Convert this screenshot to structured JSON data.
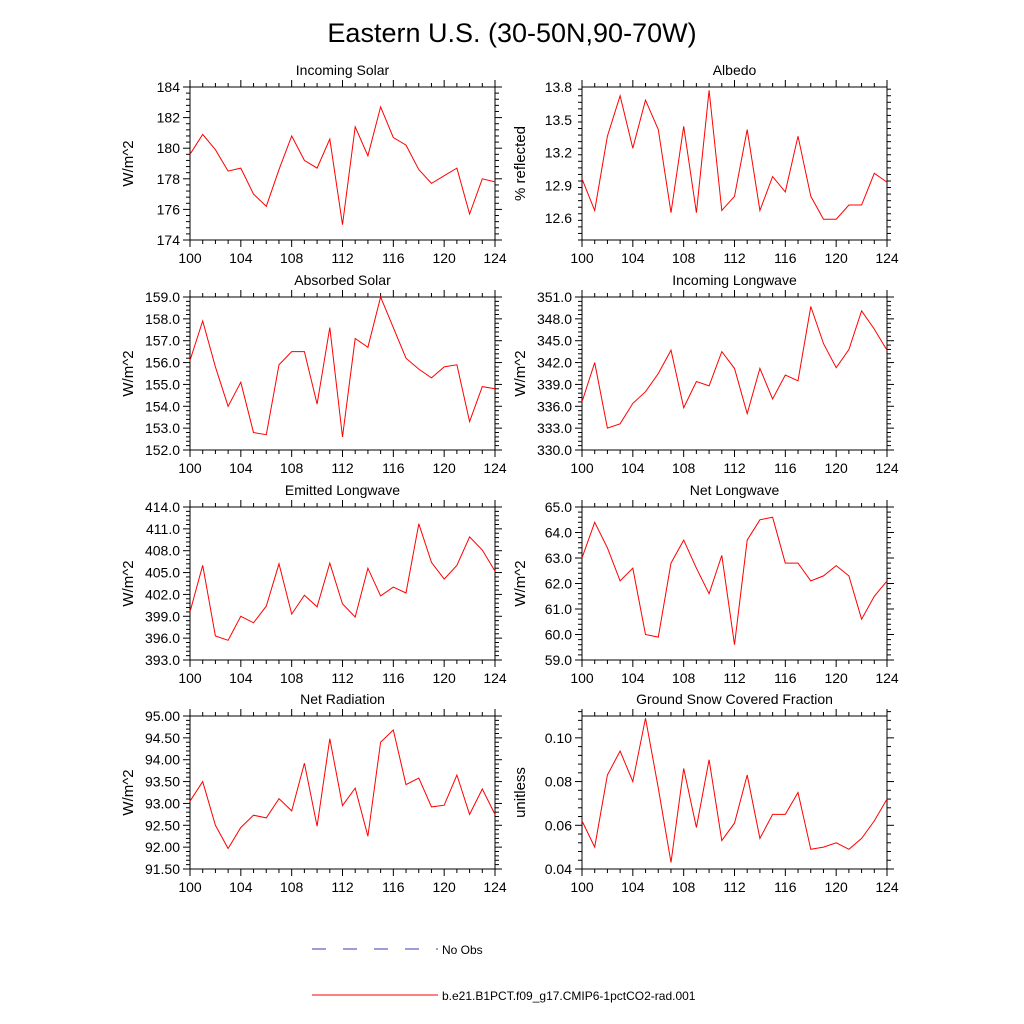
{
  "figure": {
    "title": "Eastern U.S. (30-50N,90-70W)",
    "legend": [
      {
        "label": "No Obs",
        "color": "#3b3bb0",
        "style": "dashed"
      },
      {
        "label": "b.e21.B1PCT.f09_g17.CMIP6-1pctCO2-rad.001",
        "color": "#ff0000",
        "style": "solid"
      }
    ]
  },
  "chart_data": [
    {
      "type": "line",
      "title": "Incoming Solar",
      "xlabel": "",
      "ylabel": "W/m^2",
      "xlim": [
        100,
        124
      ],
      "ylim": [
        174,
        184
      ],
      "xticks": [
        100,
        104,
        108,
        112,
        116,
        120,
        124
      ],
      "xtick_labels": [
        "100",
        "104",
        "108",
        "112",
        "116",
        "120",
        "124"
      ],
      "yticks": [
        174,
        176,
        178,
        180,
        182,
        184
      ],
      "ytick_labels": [
        "174",
        "176",
        "178",
        "180",
        "182",
        "184"
      ],
      "x": [
        100,
        101,
        102,
        103,
        104,
        105,
        106,
        107,
        108,
        109,
        110,
        111,
        112,
        113,
        114,
        115,
        116,
        117,
        118,
        119,
        120,
        121,
        122,
        123,
        124
      ],
      "series": [
        {
          "name": "b.e21.B1PCT.f09_g17.CMIP6-1pctCO2-rad.001",
          "color": "#ff0000",
          "values": [
            179.6,
            180.9,
            179.9,
            178.5,
            178.7,
            177.0,
            176.2,
            178.6,
            180.8,
            179.2,
            178.7,
            180.6,
            175.0,
            181.4,
            179.5,
            182.7,
            180.7,
            180.2,
            178.6,
            177.7,
            178.2,
            178.7,
            175.7,
            178.0,
            177.8
          ]
        }
      ]
    },
    {
      "type": "line",
      "title": "Albedo",
      "xlabel": "",
      "ylabel": "% reflected",
      "xlim": [
        100,
        124
      ],
      "ylim": [
        12.4,
        13.8
      ],
      "xticks": [
        100,
        104,
        108,
        112,
        116,
        120,
        124
      ],
      "xtick_labels": [
        "100",
        "104",
        "108",
        "112",
        "116",
        "120",
        "124"
      ],
      "yticks": [
        12.6,
        12.9,
        13.2,
        13.5,
        13.8
      ],
      "ytick_labels": [
        "12.6",
        "12.9",
        "13.2",
        "13.5",
        "13.8"
      ],
      "x": [
        100,
        101,
        102,
        103,
        104,
        105,
        106,
        107,
        108,
        109,
        110,
        111,
        112,
        113,
        114,
        115,
        116,
        117,
        118,
        119,
        120,
        121,
        122,
        123,
        124
      ],
      "series": [
        {
          "name": "b.e21.B1PCT.f09_g17.CMIP6-1pctCO2-rad.001",
          "color": "#ff0000",
          "values": [
            12.96,
            12.67,
            13.35,
            13.72,
            13.24,
            13.68,
            13.41,
            12.65,
            13.44,
            12.65,
            13.77,
            12.67,
            12.8,
            13.41,
            12.67,
            12.98,
            12.84,
            13.35,
            12.8,
            12.59,
            12.59,
            12.72,
            12.72,
            13.01,
            12.93
          ]
        }
      ]
    },
    {
      "type": "line",
      "title": "Absorbed Solar",
      "xlabel": "",
      "ylabel": "W/m^2",
      "xlim": [
        100,
        124
      ],
      "ylim": [
        152.0,
        159.0
      ],
      "xticks": [
        100,
        104,
        108,
        112,
        116,
        120,
        124
      ],
      "xtick_labels": [
        "100",
        "104",
        "108",
        "112",
        "116",
        "120",
        "124"
      ],
      "yticks": [
        152.0,
        153.0,
        154.0,
        155.0,
        156.0,
        157.0,
        158.0,
        159.0
      ],
      "ytick_labels": [
        "152.0",
        "153.0",
        "154.0",
        "155.0",
        "156.0",
        "157.0",
        "158.0",
        "159.0"
      ],
      "x": [
        100,
        101,
        102,
        103,
        104,
        105,
        106,
        107,
        108,
        109,
        110,
        111,
        112,
        113,
        114,
        115,
        116,
        117,
        118,
        119,
        120,
        121,
        122,
        123,
        124
      ],
      "series": [
        {
          "name": "b.e21.B1PCT.f09_g17.CMIP6-1pctCO2-rad.001",
          "color": "#ff0000",
          "values": [
            156.1,
            157.9,
            155.8,
            154.0,
            155.1,
            152.8,
            152.7,
            155.9,
            156.5,
            156.5,
            154.1,
            157.6,
            152.6,
            157.1,
            156.7,
            159.0,
            157.6,
            156.2,
            155.7,
            155.3,
            155.8,
            155.9,
            153.3,
            154.9,
            154.8
          ]
        }
      ]
    },
    {
      "type": "line",
      "title": "Incoming Longwave",
      "xlabel": "",
      "ylabel": "W/m^2",
      "xlim": [
        100,
        124
      ],
      "ylim": [
        330.0,
        351.0
      ],
      "xticks": [
        100,
        104,
        108,
        112,
        116,
        120,
        124
      ],
      "xtick_labels": [
        "100",
        "104",
        "108",
        "112",
        "116",
        "120",
        "124"
      ],
      "yticks": [
        330.0,
        333.0,
        336.0,
        339.0,
        342.0,
        345.0,
        348.0,
        351.0
      ],
      "ytick_labels": [
        "330.0",
        "333.0",
        "336.0",
        "339.0",
        "342.0",
        "345.0",
        "348.0",
        "351.0"
      ],
      "x": [
        100,
        101,
        102,
        103,
        104,
        105,
        106,
        107,
        108,
        109,
        110,
        111,
        112,
        113,
        114,
        115,
        116,
        117,
        118,
        119,
        120,
        121,
        122,
        123,
        124
      ],
      "series": [
        {
          "name": "b.e21.B1PCT.f09_g17.CMIP6-1pctCO2-rad.001",
          "color": "#ff0000",
          "values": [
            336.6,
            342.0,
            333.0,
            333.6,
            336.4,
            338.0,
            340.5,
            343.7,
            335.8,
            339.4,
            338.8,
            343.5,
            341.2,
            335.0,
            341.2,
            337.0,
            340.3,
            339.5,
            349.7,
            344.6,
            341.3,
            343.8,
            349.1,
            346.6,
            343.7
          ]
        }
      ]
    },
    {
      "type": "line",
      "title": "Emitted Longwave",
      "xlabel": "",
      "ylabel": "W/m^2",
      "xlim": [
        100,
        124
      ],
      "ylim": [
        393.0,
        414.0
      ],
      "xticks": [
        100,
        104,
        108,
        112,
        116,
        120,
        124
      ],
      "xtick_labels": [
        "100",
        "104",
        "108",
        "112",
        "116",
        "120",
        "124"
      ],
      "yticks": [
        393.0,
        396.0,
        399.0,
        402.0,
        405.0,
        408.0,
        411.0,
        414.0
      ],
      "ytick_labels": [
        "393.0",
        "396.0",
        "399.0",
        "402.0",
        "405.0",
        "408.0",
        "411.0",
        "414.0"
      ],
      "x": [
        100,
        101,
        102,
        103,
        104,
        105,
        106,
        107,
        108,
        109,
        110,
        111,
        112,
        113,
        114,
        115,
        116,
        117,
        118,
        119,
        120,
        121,
        122,
        123,
        124
      ],
      "series": [
        {
          "name": "b.e21.B1PCT.f09_g17.CMIP6-1pctCO2-rad.001",
          "color": "#ff0000",
          "values": [
            399.6,
            406.0,
            396.3,
            395.7,
            399.0,
            398.1,
            400.4,
            406.2,
            399.3,
            401.9,
            400.3,
            406.3,
            400.7,
            398.9,
            405.6,
            401.8,
            403.0,
            402.2,
            411.7,
            406.4,
            404.1,
            406.0,
            409.9,
            408.1,
            405.2
          ]
        }
      ]
    },
    {
      "type": "line",
      "title": "Net Longwave",
      "xlabel": "",
      "ylabel": "W/m^2",
      "xlim": [
        100,
        124
      ],
      "ylim": [
        59.0,
        65.0
      ],
      "xticks": [
        100,
        104,
        108,
        112,
        116,
        120,
        124
      ],
      "xtick_labels": [
        "100",
        "104",
        "108",
        "112",
        "116",
        "120",
        "124"
      ],
      "yticks": [
        59.0,
        60.0,
        61.0,
        62.0,
        63.0,
        64.0,
        65.0
      ],
      "ytick_labels": [
        "59.0",
        "60.0",
        "61.0",
        "62.0",
        "63.0",
        "64.0",
        "65.0"
      ],
      "x": [
        100,
        101,
        102,
        103,
        104,
        105,
        106,
        107,
        108,
        109,
        110,
        111,
        112,
        113,
        114,
        115,
        116,
        117,
        118,
        119,
        120,
        121,
        122,
        123,
        124
      ],
      "series": [
        {
          "name": "b.e21.B1PCT.f09_g17.CMIP6-1pctCO2-rad.001",
          "color": "#ff0000",
          "values": [
            63.0,
            64.4,
            63.4,
            62.1,
            62.6,
            60.0,
            59.9,
            62.8,
            63.7,
            62.6,
            61.6,
            63.1,
            59.6,
            63.7,
            64.5,
            64.6,
            62.8,
            62.8,
            62.1,
            62.3,
            62.7,
            62.3,
            60.6,
            61.5,
            62.1
          ]
        }
      ]
    },
    {
      "type": "line",
      "title": "Net Radiation",
      "xlabel": "",
      "ylabel": "W/m^2",
      "xlim": [
        100,
        124
      ],
      "ylim": [
        91.5,
        95.0
      ],
      "xticks": [
        100,
        104,
        108,
        112,
        116,
        120,
        124
      ],
      "xtick_labels": [
        "100",
        "104",
        "108",
        "112",
        "116",
        "120",
        "124"
      ],
      "yticks": [
        91.5,
        92.0,
        92.5,
        93.0,
        93.5,
        94.0,
        94.5,
        95.0
      ],
      "ytick_labels": [
        "91.50",
        "92.00",
        "92.50",
        "93.00",
        "93.50",
        "94.00",
        "94.50",
        "95.00"
      ],
      "x": [
        100,
        101,
        102,
        103,
        104,
        105,
        106,
        107,
        108,
        109,
        110,
        111,
        112,
        113,
        114,
        115,
        116,
        117,
        118,
        119,
        120,
        121,
        122,
        123,
        124
      ],
      "series": [
        {
          "name": "b.e21.B1PCT.f09_g17.CMIP6-1pctCO2-rad.001",
          "color": "#ff0000",
          "values": [
            93.05,
            93.5,
            92.5,
            91.97,
            92.45,
            92.73,
            92.67,
            93.11,
            92.83,
            93.92,
            92.48,
            94.48,
            92.95,
            93.35,
            92.25,
            94.4,
            94.68,
            93.43,
            93.58,
            92.92,
            92.96,
            93.65,
            92.75,
            93.33,
            92.75
          ]
        }
      ]
    },
    {
      "type": "line",
      "title": "Ground Snow Covered Fraction",
      "xlabel": "",
      "ylabel": "unitless",
      "xlim": [
        100,
        124
      ],
      "ylim": [
        0.04,
        0.11
      ],
      "xticks": [
        100,
        104,
        108,
        112,
        116,
        120,
        124
      ],
      "xtick_labels": [
        "100",
        "104",
        "108",
        "112",
        "116",
        "120",
        "124"
      ],
      "yticks": [
        0.04,
        0.06,
        0.08,
        0.1
      ],
      "ytick_labels": [
        "0.04",
        "0.06",
        "0.08",
        "0.10"
      ],
      "x": [
        100,
        101,
        102,
        103,
        104,
        105,
        106,
        107,
        108,
        109,
        110,
        111,
        112,
        113,
        114,
        115,
        116,
        117,
        118,
        119,
        120,
        121,
        122,
        123,
        124
      ],
      "series": [
        {
          "name": "b.e21.B1PCT.f09_g17.CMIP6-1pctCO2-rad.001",
          "color": "#ff0000",
          "values": [
            0.062,
            0.05,
            0.083,
            0.094,
            0.08,
            0.109,
            0.077,
            0.043,
            0.086,
            0.059,
            0.09,
            0.053,
            0.061,
            0.083,
            0.054,
            0.065,
            0.065,
            0.075,
            0.049,
            0.05,
            0.052,
            0.049,
            0.054,
            0.062,
            0.072
          ]
        }
      ]
    }
  ]
}
